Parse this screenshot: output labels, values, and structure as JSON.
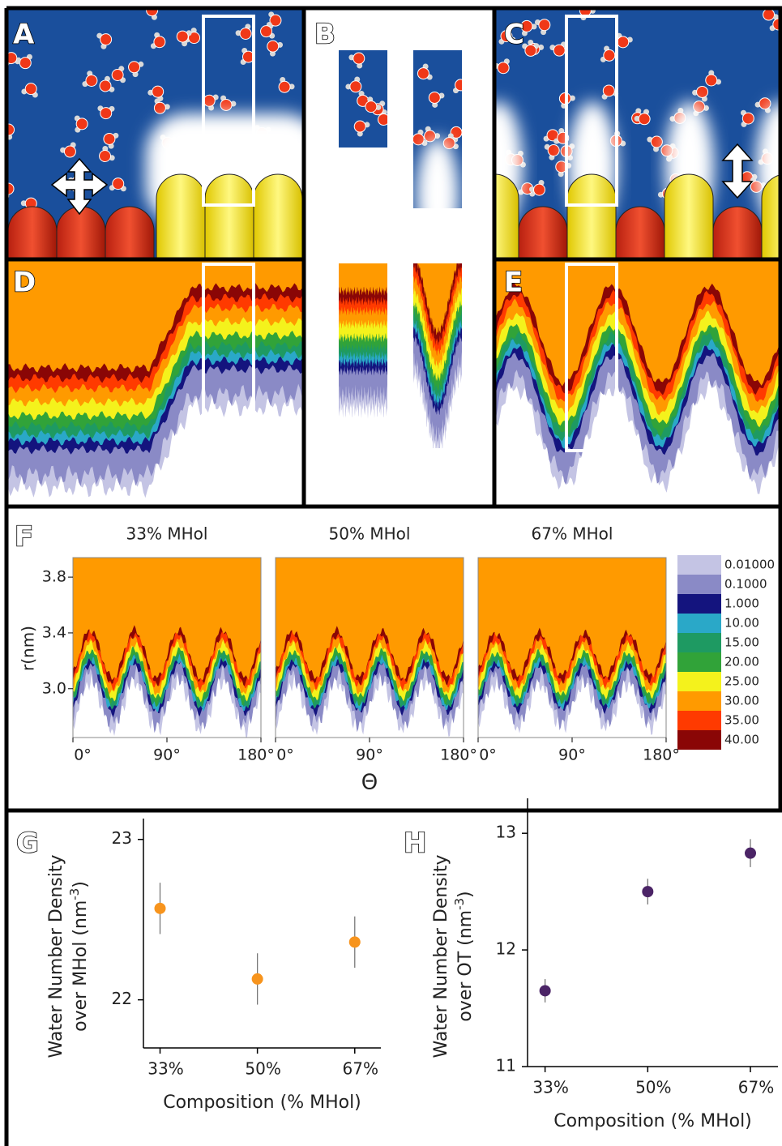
{
  "panels": [
    "A",
    "B",
    "C",
    "D",
    "E",
    "F",
    "G",
    "H"
  ],
  "chart_data": [
    {
      "type": "contour",
      "subplot_titles": [
        "33% MHol",
        "50% MHol",
        "67% MHol"
      ],
      "y_label": "r(nm)",
      "x_label": "Θ",
      "xlim": [
        0,
        180
      ],
      "xticks": [
        {
          "value": 0,
          "label": "0°"
        },
        {
          "value": 90,
          "label": "90°"
        },
        {
          "value": 180,
          "label": "180°"
        }
      ],
      "ylim": [
        2.65,
        3.94
      ],
      "yticks": [
        {
          "value": 3,
          "label": "3.0"
        },
        3.4,
        3.8
      ],
      "colorbar": {
        "levels": [
          {
            "value": 0.01,
            "label": "0.01000"
          },
          {
            "value": 0.1,
            "label": "0.1000"
          },
          {
            "value": 1,
            "label": "1.000"
          },
          {
            "value": 10,
            "label": "10.00"
          },
          {
            "value": 15,
            "label": "15.00"
          },
          {
            "value": 20,
            "label": "20.00"
          },
          {
            "value": 25,
            "label": "25.00"
          },
          {
            "value": 30,
            "label": "30.00"
          },
          {
            "value": 35,
            "label": "35.00"
          },
          {
            "value": 40,
            "label": "40.00"
          }
        ],
        "colors": [
          "#c4c4e4",
          "#8a8ac6",
          "#14147e",
          "#2aa8c8",
          "#1e9a62",
          "#31a339",
          "#f4f21c",
          "#ff9a00",
          "#ff3a00",
          "#8a0606"
        ]
      }
    },
    {
      "type": "scatter",
      "y_label": {
        "line1": "Water Number Density",
        "line2": "over MHol (nm",
        "superscript": "-3",
        "end": ")"
      },
      "x_label": "Composition (% MHol)",
      "categories": [
        "33%",
        "50%",
        "67%"
      ],
      "values": [
        22.57,
        22.13,
        22.36
      ],
      "errors": [
        0.16,
        0.16,
        0.16
      ],
      "color": "#f7941d",
      "ylim": [
        21.7,
        23.13
      ],
      "yticks": [
        22,
        23
      ]
    },
    {
      "type": "scatter",
      "y_label": {
        "line1": "Water Number Density",
        "line2": "over OT (nm",
        "superscript": "-3",
        "end": ")"
      },
      "x_label": "Composition (% MHol)",
      "categories": [
        "33%",
        "50%",
        "67%"
      ],
      "values": [
        11.65,
        12.5,
        12.83
      ],
      "errors": [
        0.1,
        0.11,
        0.12
      ],
      "color": "#4b2466",
      "ylim": [
        11,
        13.3
      ],
      "yticks": [
        11,
        12,
        13
      ]
    }
  ]
}
